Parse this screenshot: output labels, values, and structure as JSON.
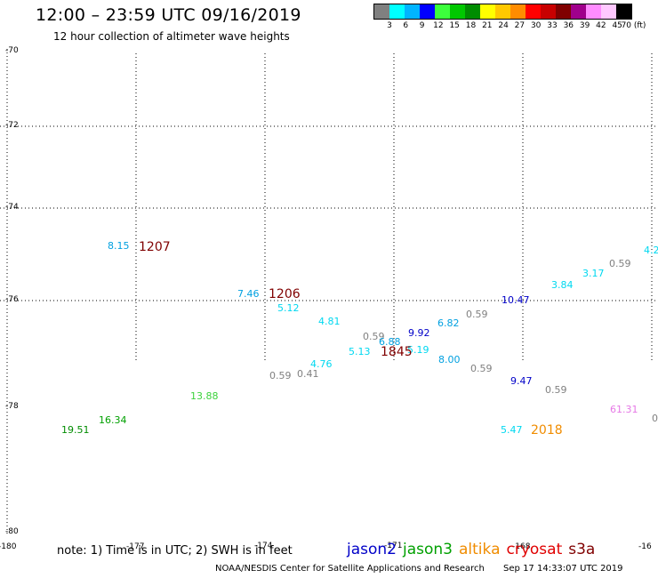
{
  "header": {
    "title": "12:00 – 23:59 UTC 09/16/2019",
    "subtitle": "12 hour collection of altimeter wave heights"
  },
  "scale": {
    "colors": [
      "#808080",
      "#00ffff",
      "#00b4ff",
      "#0000ff",
      "#3cff3c",
      "#00c800",
      "#008c00",
      "#ffff00",
      "#ffc800",
      "#ff8c00",
      "#ff0000",
      "#c80000",
      "#800000",
      "#a0008c",
      "#ff8cff",
      "#ffc8ff",
      "#000000"
    ],
    "labels": [
      "3",
      "6",
      "9",
      "12",
      "15",
      "18",
      "21",
      "24",
      "27",
      "30",
      "33",
      "36",
      "39",
      "42",
      "45",
      "70 (ft)"
    ]
  },
  "map": {
    "lat_labels": [
      "-70",
      "-72",
      "-74",
      "-76",
      "-78",
      "-80"
    ],
    "lon_labels": [
      "-180",
      "-177",
      "-174",
      "-171",
      "-168",
      "-16"
    ]
  },
  "measurements": [
    {
      "text": "8.15",
      "color": "#00a0e0"
    },
    {
      "text": "7.46",
      "color": "#00a0e0"
    },
    {
      "text": "5.12",
      "color": "#00d8f0"
    },
    {
      "text": "4.81",
      "color": "#00d8f0"
    },
    {
      "text": "0.59",
      "color": "#808080"
    },
    {
      "text": "6.88",
      "color": "#00a0e0"
    },
    {
      "text": "9.92",
      "color": "#0000c8"
    },
    {
      "text": "6.82",
      "color": "#00a0e0"
    },
    {
      "text": "0.59",
      "color": "#808080"
    },
    {
      "text": "10.47",
      "color": "#0000c8"
    },
    {
      "text": "3.84",
      "color": "#00d8f0"
    },
    {
      "text": "3.17",
      "color": "#00d8f0"
    },
    {
      "text": "0.59",
      "color": "#808080"
    },
    {
      "text": "4.2",
      "color": "#00d8f0"
    },
    {
      "text": "5.13",
      "color": "#00d8f0"
    },
    {
      "text": "5.19",
      "color": "#00d8f0"
    },
    {
      "text": "8.00",
      "color": "#00a0e0"
    },
    {
      "text": "4.76",
      "color": "#00d8f0"
    },
    {
      "text": "0.59",
      "color": "#808080"
    },
    {
      "text": "0.41",
      "color": "#808080"
    },
    {
      "text": "0.59",
      "color": "#808080"
    },
    {
      "text": "9.47",
      "color": "#0000c8"
    },
    {
      "text": "0.59",
      "color": "#808080"
    },
    {
      "text": "13.88",
      "color": "#3cd23c"
    },
    {
      "text": "16.34",
      "color": "#00a000"
    },
    {
      "text": "19.51",
      "color": "#008c00"
    },
    {
      "text": "5.47",
      "color": "#00d8f0"
    },
    {
      "text": "61.31",
      "color": "#e678e6"
    },
    {
      "text": "0",
      "color": "#808080"
    }
  ],
  "times": [
    {
      "text": "1207",
      "color": "#800000"
    },
    {
      "text": "1206",
      "color": "#800000"
    },
    {
      "text": "1845",
      "color": "#800000"
    },
    {
      "text": "2018",
      "color": "#f08c00"
    }
  ],
  "note": "note: 1) Time is in UTC; 2) SWH is in feet",
  "legend": [
    {
      "name": "jason2",
      "color": "#0000c8"
    },
    {
      "name": "jason3",
      "color": "#00a000"
    },
    {
      "name": "altika",
      "color": "#f08c00"
    },
    {
      "name": "cryosat",
      "color": "#e00000"
    },
    {
      "name": "s3a",
      "color": "#800000"
    }
  ],
  "footer": {
    "credit": "NOAA/NESDIS Center for Satellite Applications and Research",
    "timestamp": "Sep 17 14:33:07 UTC 2019"
  }
}
